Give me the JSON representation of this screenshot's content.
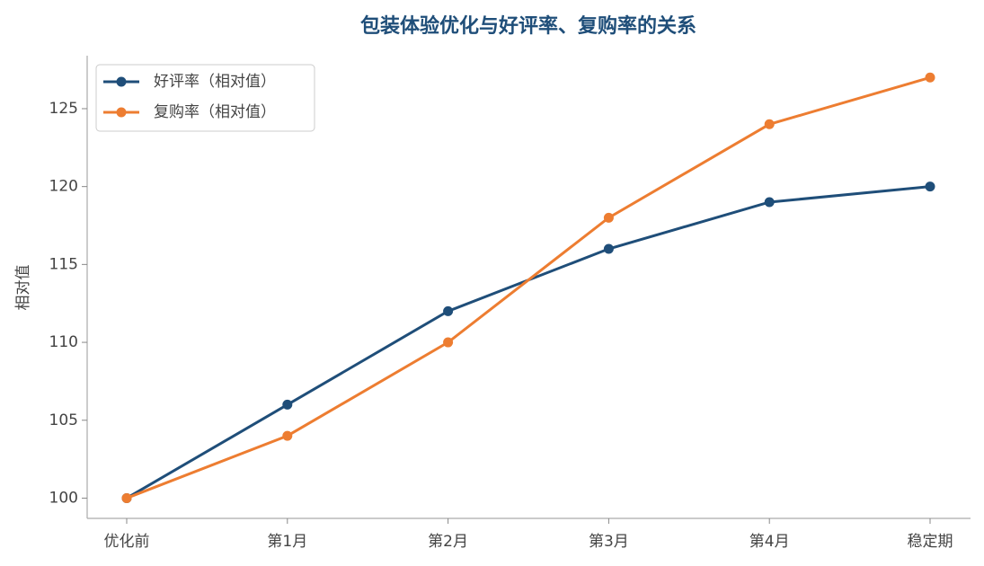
{
  "chart_data": {
    "type": "line",
    "title": "包装体验优化与好评率、复购率的关系",
    "y_label": "相对值",
    "categories": [
      "优化前",
      "第1月",
      "第2月",
      "第3月",
      "第4月",
      "稳定期"
    ],
    "series": [
      {
        "name": "好评率（相对值）",
        "color": "#1f4e79",
        "values": [
          100,
          106,
          112,
          116,
          119,
          120
        ]
      },
      {
        "name": "复购率（相对值）",
        "color": "#ed7d31",
        "values": [
          100,
          104,
          110,
          118,
          124,
          127
        ]
      }
    ],
    "ylim": [
      98.7,
      128.4
    ],
    "yticks": [
      100,
      105,
      110,
      115,
      120,
      125
    ],
    "grid": false,
    "legend": "upper-left"
  }
}
